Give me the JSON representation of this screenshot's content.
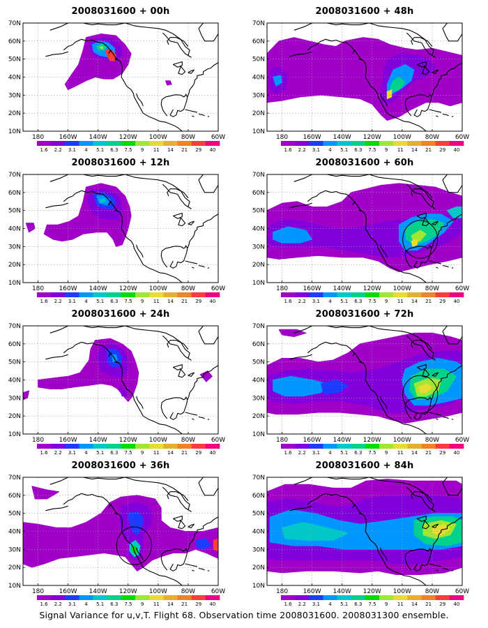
{
  "footer": "Signal Variance for u,v,T. Flight 68. Observation time 2008031600. 2008031300 ensemble.",
  "axes": {
    "lat_ticks": [
      "70N",
      "60N",
      "50N",
      "40N",
      "30N",
      "20N",
      "10N"
    ],
    "lon_ticks": [
      "180",
      "160W",
      "140W",
      "120W",
      "100W",
      "80W",
      "60W"
    ]
  },
  "colorbar": {
    "levels": [
      "1.6",
      "2.2",
      "3.1",
      "4",
      "5.1",
      "6.3",
      "7.5",
      "9",
      "11",
      "14",
      "21",
      "29",
      "40"
    ],
    "colors": [
      "#a000c8",
      "#8200dc",
      "#1e3cff",
      "#0096ff",
      "#00c8c8",
      "#00d28c",
      "#00dc00",
      "#a0e632",
      "#e6dc32",
      "#e6af2d",
      "#f08228",
      "#fa3c3c",
      "#f00082"
    ]
  },
  "panels": [
    {
      "title": "2008031600 + 00h"
    },
    {
      "title": "2008031600 + 48h"
    },
    {
      "title": "2008031600 + 12h"
    },
    {
      "title": "2008031600 + 60h"
    },
    {
      "title": "2008031600 + 24h"
    },
    {
      "title": "2008031600 + 72h"
    },
    {
      "title": "2008031600 + 36h"
    },
    {
      "title": "2008031600 + 84h"
    }
  ]
}
